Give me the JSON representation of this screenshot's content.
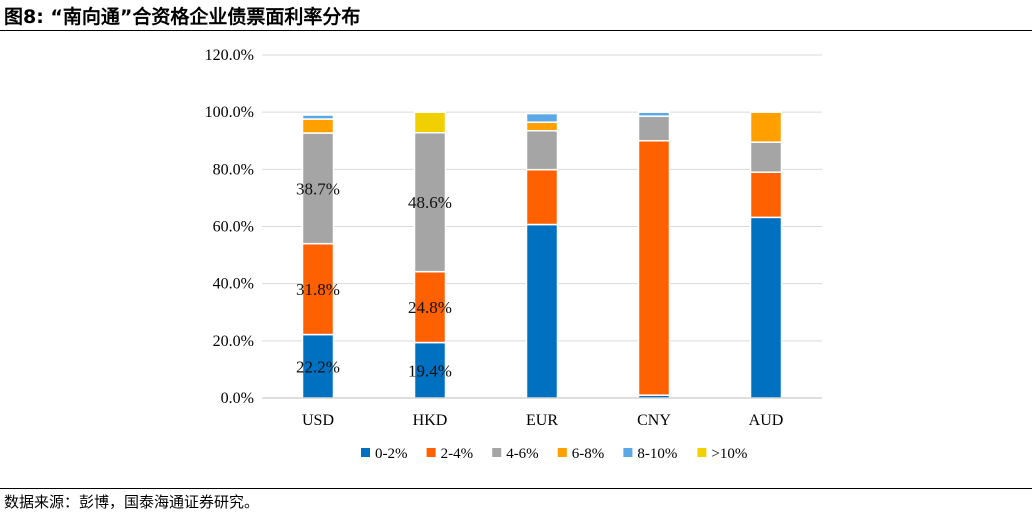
{
  "header": {
    "title": "图8:   “南向通”合资格企业债票面利率分布"
  },
  "footer": {
    "source": "数据来源：彭博，国泰海通证券研究。"
  },
  "chart_data": {
    "type": "bar",
    "stacked": true,
    "title": "“南向通”合资格企业债票面利率分布",
    "xlabel": "",
    "ylabel": "",
    "ylim": [
      0,
      120
    ],
    "yticks": [
      0,
      20,
      40,
      60,
      80,
      100,
      120
    ],
    "ytick_labels": [
      "0.0%",
      "20.0%",
      "40.0%",
      "60.0%",
      "80.0%",
      "100.0%",
      "120.0%"
    ],
    "grid": true,
    "legend_position": "bottom",
    "categories": [
      "USD",
      "HKD",
      "EUR",
      "CNY",
      "AUD"
    ],
    "series": [
      {
        "name": "0-2%",
        "color": "#0070C0",
        "values": [
          22.2,
          19.4,
          60.7,
          1.0,
          63.2
        ]
      },
      {
        "name": "2-4%",
        "color": "#FF6000",
        "values": [
          31.8,
          24.8,
          19.2,
          89.0,
          15.8
        ]
      },
      {
        "name": "4-6%",
        "color": "#A5A5A5",
        "values": [
          38.7,
          48.6,
          13.6,
          8.6,
          10.5
        ]
      },
      {
        "name": "6-8%",
        "color": "#FFA000",
        "values": [
          4.9,
          0.0,
          3.0,
          0.0,
          10.5
        ]
      },
      {
        "name": "8-10%",
        "color": "#5BA8E6",
        "values": [
          1.4,
          0.0,
          3.0,
          1.4,
          0.0
        ]
      },
      {
        "name": ">10%",
        "color": "#F0D000",
        "values": [
          0.0,
          7.2,
          0.0,
          0.0,
          0.0
        ]
      }
    ],
    "data_labels": [
      {
        "category": "USD",
        "series": "0-2%",
        "text": "22.2%"
      },
      {
        "category": "USD",
        "series": "2-4%",
        "text": "31.8%"
      },
      {
        "category": "USD",
        "series": "4-6%",
        "text": "38.7%"
      },
      {
        "category": "HKD",
        "series": "0-2%",
        "text": "19.4%"
      },
      {
        "category": "HKD",
        "series": "2-4%",
        "text": "24.8%"
      },
      {
        "category": "HKD",
        "series": "4-6%",
        "text": "48.6%"
      }
    ]
  }
}
